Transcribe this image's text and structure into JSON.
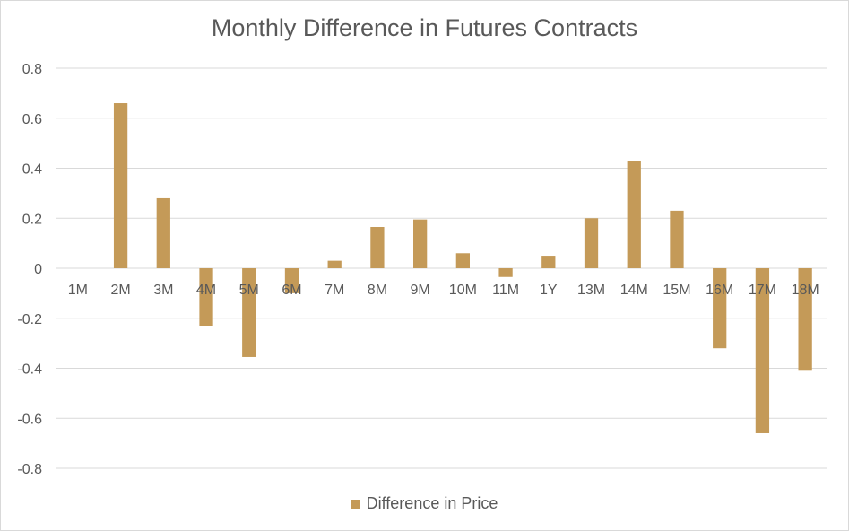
{
  "chart_data": {
    "type": "bar",
    "title": "Monthly Difference in Futures Contracts",
    "xlabel": "",
    "ylabel": "",
    "categories": [
      "1M",
      "2M",
      "3M",
      "4M",
      "5M",
      "6M",
      "7M",
      "8M",
      "9M",
      "10M",
      "11M",
      "1Y",
      "13M",
      "14M",
      "15M",
      "16M",
      "17M",
      "18M"
    ],
    "series": [
      {
        "name": "Difference in Price",
        "color": "#c49a58",
        "values": [
          0,
          0.66,
          0.28,
          -0.23,
          -0.355,
          -0.1,
          0.03,
          0.165,
          0.195,
          0.06,
          -0.035,
          0.05,
          0.2,
          0.43,
          0.23,
          -0.32,
          -0.66,
          -0.41
        ]
      }
    ],
    "ylim": [
      -0.8,
      0.8
    ],
    "yticks": [
      0.8,
      0.6,
      0.4,
      0.2,
      0,
      -0.2,
      -0.4,
      -0.6,
      -0.8
    ],
    "ytick_labels": [
      "0.8",
      "0.6",
      "0.4",
      "0.2",
      "0",
      "-0.2",
      "-0.4",
      "-0.6",
      "-0.8"
    ],
    "grid": true,
    "legend_position": "bottom",
    "gridline_color": "#d9d9d9",
    "text_color": "#595959"
  }
}
